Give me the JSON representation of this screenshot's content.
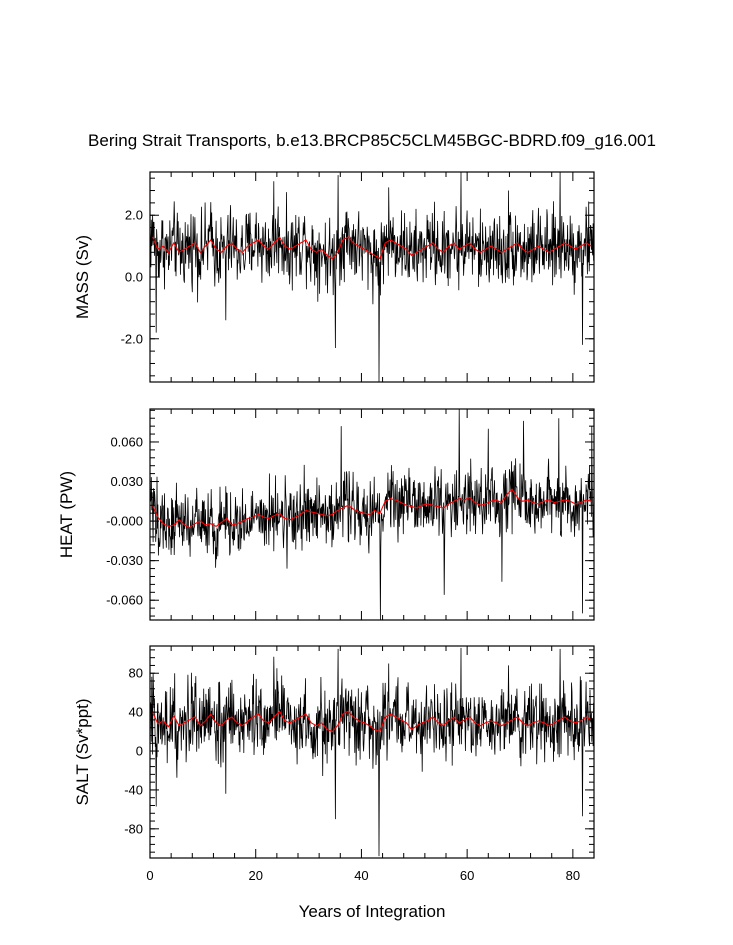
{
  "chart_data": {
    "type": "line",
    "title": "Bering Strait Transports, b.e13.BRCP85C5CLM45BGC-BDRD.f09_g16.001",
    "xlabel": "Years of Integration",
    "xlim": [
      0,
      84
    ],
    "xticks": [
      0,
      20,
      40,
      60,
      80
    ],
    "xtick_labels": [
      "0",
      "20",
      "40",
      "60",
      "80"
    ],
    "series_colors": {
      "monthly": "#000000",
      "annual_mean": "#ff0000"
    },
    "samples_per_year": 12,
    "panels": [
      {
        "name": "mass",
        "ylabel": "MASS (Sv)",
        "ylim": [
          -3.4,
          3.4
        ],
        "yticks": [
          -2.0,
          0.0,
          2.0
        ],
        "ytick_labels": [
          "-2.0",
          "0.0",
          "2.0"
        ],
        "annual_mean": [
          1.3,
          0.9,
          1.0,
          0.8,
          1.1,
          0.8,
          0.9,
          1.0,
          1.1,
          0.8,
          1.0,
          1.2,
          0.9,
          0.8,
          1.0,
          1.1,
          0.9,
          0.8,
          1.0,
          1.1,
          1.2,
          1.0,
          0.9,
          1.1,
          1.3,
          1.0,
          0.9,
          1.0,
          1.1,
          1.2,
          0.9,
          0.8,
          0.9,
          0.7,
          0.6,
          0.8,
          1.2,
          1.3,
          1.1,
          1.0,
          0.9,
          0.8,
          0.7,
          0.6,
          1.1,
          1.2,
          1.1,
          1.0,
          0.9,
          0.7,
          0.8,
          0.9,
          1.0,
          1.1,
          0.9,
          0.8,
          1.0,
          1.1,
          0.9,
          1.0,
          1.1,
          0.9,
          0.8,
          0.9,
          1.0,
          0.9,
          0.8,
          0.9,
          1.0,
          1.1,
          0.9,
          0.8,
          0.9,
          1.0,
          0.9,
          0.8,
          0.9,
          1.0,
          1.1,
          1.0,
          0.9,
          1.0,
          1.1,
          1.0
        ],
        "monthly_amplitude": 0.75,
        "extremes": [
          {
            "x": 43.3,
            "y": -3.4
          },
          {
            "x": 35.6,
            "y": 3.3
          },
          {
            "x": 58.8,
            "y": 3.4
          },
          {
            "x": 77.6,
            "y": 3.4
          },
          {
            "x": 23.4,
            "y": 3.1
          },
          {
            "x": 1.2,
            "y": -1.8
          },
          {
            "x": 81.8,
            "y": -2.2
          },
          {
            "x": 35.1,
            "y": -2.3
          },
          {
            "x": 67.8,
            "y": 2.8
          },
          {
            "x": 45.2,
            "y": 2.9
          },
          {
            "x": 14.3,
            "y": -1.4
          }
        ]
      },
      {
        "name": "heat",
        "ylabel": "HEAT (PW)",
        "ylim": [
          -0.075,
          0.085
        ],
        "yticks": [
          -0.06,
          -0.03,
          0.0,
          0.03,
          0.06
        ],
        "ytick_labels": [
          "-0.060",
          "-0.030",
          "-0.000",
          "0.030",
          "0.060"
        ],
        "annual_mean": [
          0.012,
          0.003,
          -0.002,
          -0.004,
          -0.003,
          0.001,
          -0.003,
          -0.005,
          -0.002,
          0.0,
          -0.003,
          -0.002,
          -0.004,
          -0.001,
          0.002,
          -0.003,
          -0.002,
          0.0,
          0.002,
          0.003,
          0.005,
          0.003,
          0.002,
          0.004,
          0.006,
          0.002,
          0.001,
          0.003,
          0.005,
          0.008,
          0.007,
          0.006,
          0.005,
          0.004,
          0.005,
          0.008,
          0.01,
          0.012,
          0.009,
          0.007,
          0.006,
          0.005,
          0.008,
          0.006,
          0.015,
          0.017,
          0.016,
          0.014,
          0.012,
          0.011,
          0.01,
          0.012,
          0.013,
          0.012,
          0.011,
          0.01,
          0.013,
          0.015,
          0.017,
          0.016,
          0.018,
          0.014,
          0.012,
          0.013,
          0.015,
          0.016,
          0.014,
          0.02,
          0.024,
          0.018,
          0.015,
          0.016,
          0.014,
          0.013,
          0.015,
          0.016,
          0.014,
          0.015,
          0.016,
          0.015,
          0.013,
          0.014,
          0.016,
          0.015
        ],
        "monthly_amplitude": 0.016,
        "extremes": [
          {
            "x": 43.6,
            "y": -0.075
          },
          {
            "x": 58.5,
            "y": 0.085
          },
          {
            "x": 81.8,
            "y": -0.07
          },
          {
            "x": 55.7,
            "y": -0.056
          },
          {
            "x": 77.3,
            "y": 0.078
          },
          {
            "x": 83.6,
            "y": 0.072
          },
          {
            "x": 66.6,
            "y": -0.046
          },
          {
            "x": 25.9,
            "y": -0.036
          },
          {
            "x": 64.0,
            "y": 0.07
          },
          {
            "x": 36.2,
            "y": 0.072
          },
          {
            "x": 70.7,
            "y": 0.076
          }
        ]
      },
      {
        "name": "salt",
        "ylabel": "SALT (Sv*ppt)",
        "ylim": [
          -110,
          108
        ],
        "yticks": [
          -80,
          -40,
          0,
          40,
          80
        ],
        "ytick_labels": [
          "-80",
          "-40",
          "0",
          "40",
          "80"
        ],
        "annual_mean": [
          40,
          28,
          31,
          25,
          36,
          26,
          29,
          32,
          35,
          26,
          31,
          38,
          29,
          26,
          32,
          35,
          29,
          26,
          31,
          35,
          38,
          31,
          29,
          35,
          41,
          31,
          29,
          32,
          35,
          38,
          29,
          26,
          29,
          22,
          20,
          26,
          38,
          41,
          35,
          31,
          29,
          26,
          22,
          20,
          35,
          38,
          35,
          32,
          29,
          22,
          26,
          29,
          31,
          35,
          29,
          26,
          31,
          35,
          29,
          32,
          35,
          29,
          26,
          29,
          31,
          29,
          26,
          29,
          32,
          35,
          29,
          26,
          29,
          31,
          29,
          26,
          29,
          32,
          35,
          31,
          29,
          31,
          35,
          32
        ],
        "monthly_amplitude": 24,
        "extremes": [
          {
            "x": 43.3,
            "y": -108
          },
          {
            "x": 35.6,
            "y": 105
          },
          {
            "x": 58.8,
            "y": 106
          },
          {
            "x": 77.6,
            "y": 105
          },
          {
            "x": 23.4,
            "y": 97
          },
          {
            "x": 1.2,
            "y": -57
          },
          {
            "x": 81.8,
            "y": -67
          },
          {
            "x": 35.1,
            "y": -70
          },
          {
            "x": 67.8,
            "y": 88
          },
          {
            "x": 45.2,
            "y": 90
          },
          {
            "x": 14.3,
            "y": -44
          }
        ]
      }
    ]
  }
}
